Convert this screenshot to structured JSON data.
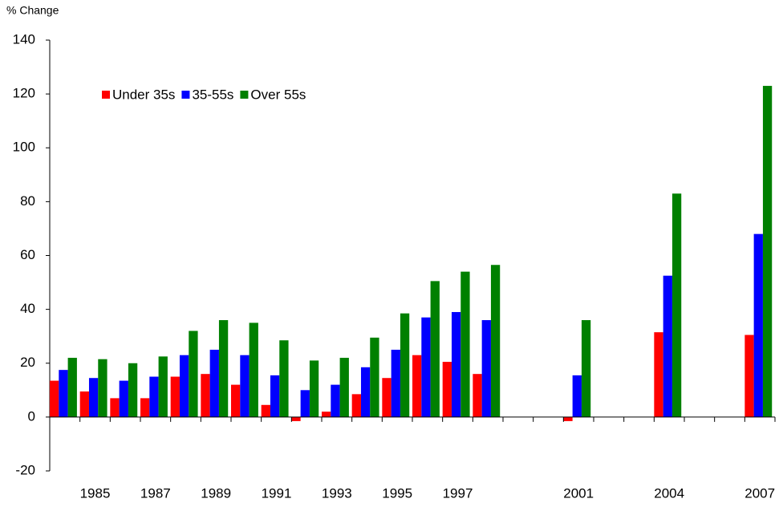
{
  "chart_data": {
    "type": "bar",
    "y_label": "% Change",
    "categories": [
      null,
      "1985",
      null,
      "1987",
      null,
      "1989",
      null,
      "1991",
      null,
      "1993",
      null,
      "1995",
      null,
      "1997",
      null,
      null,
      null,
      "2001",
      null,
      null,
      "2004",
      null,
      null,
      "2007"
    ],
    "series": [
      {
        "name": "Under 35s",
        "color": "#ff0000",
        "values": [
          13.5,
          9.5,
          7,
          7,
          15,
          16,
          12,
          4.5,
          -1.5,
          2,
          8.5,
          14.5,
          23,
          20.5,
          16,
          null,
          null,
          -1.5,
          null,
          null,
          31.5,
          null,
          null,
          30.5
        ]
      },
      {
        "name": "35-55s",
        "color": "#0000ff",
        "values": [
          17.5,
          14.5,
          13.5,
          15,
          23,
          25,
          23,
          15.5,
          10,
          12,
          18.5,
          25,
          37,
          39,
          36,
          null,
          null,
          15.5,
          null,
          null,
          52.5,
          null,
          null,
          68
        ]
      },
      {
        "name": "Over 55s",
        "color": "#008000",
        "values": [
          22,
          21.5,
          20,
          22.5,
          32,
          36,
          35,
          28.5,
          21,
          22,
          29.5,
          38.5,
          50.5,
          54,
          56.5,
          null,
          null,
          36,
          null,
          null,
          83,
          null,
          null,
          123
        ]
      }
    ],
    "ylim": [
      -20,
      140
    ],
    "yticks": [
      -20,
      0,
      20,
      40,
      60,
      80,
      100,
      120,
      140
    ],
    "grid": false,
    "legend": "top-left"
  }
}
